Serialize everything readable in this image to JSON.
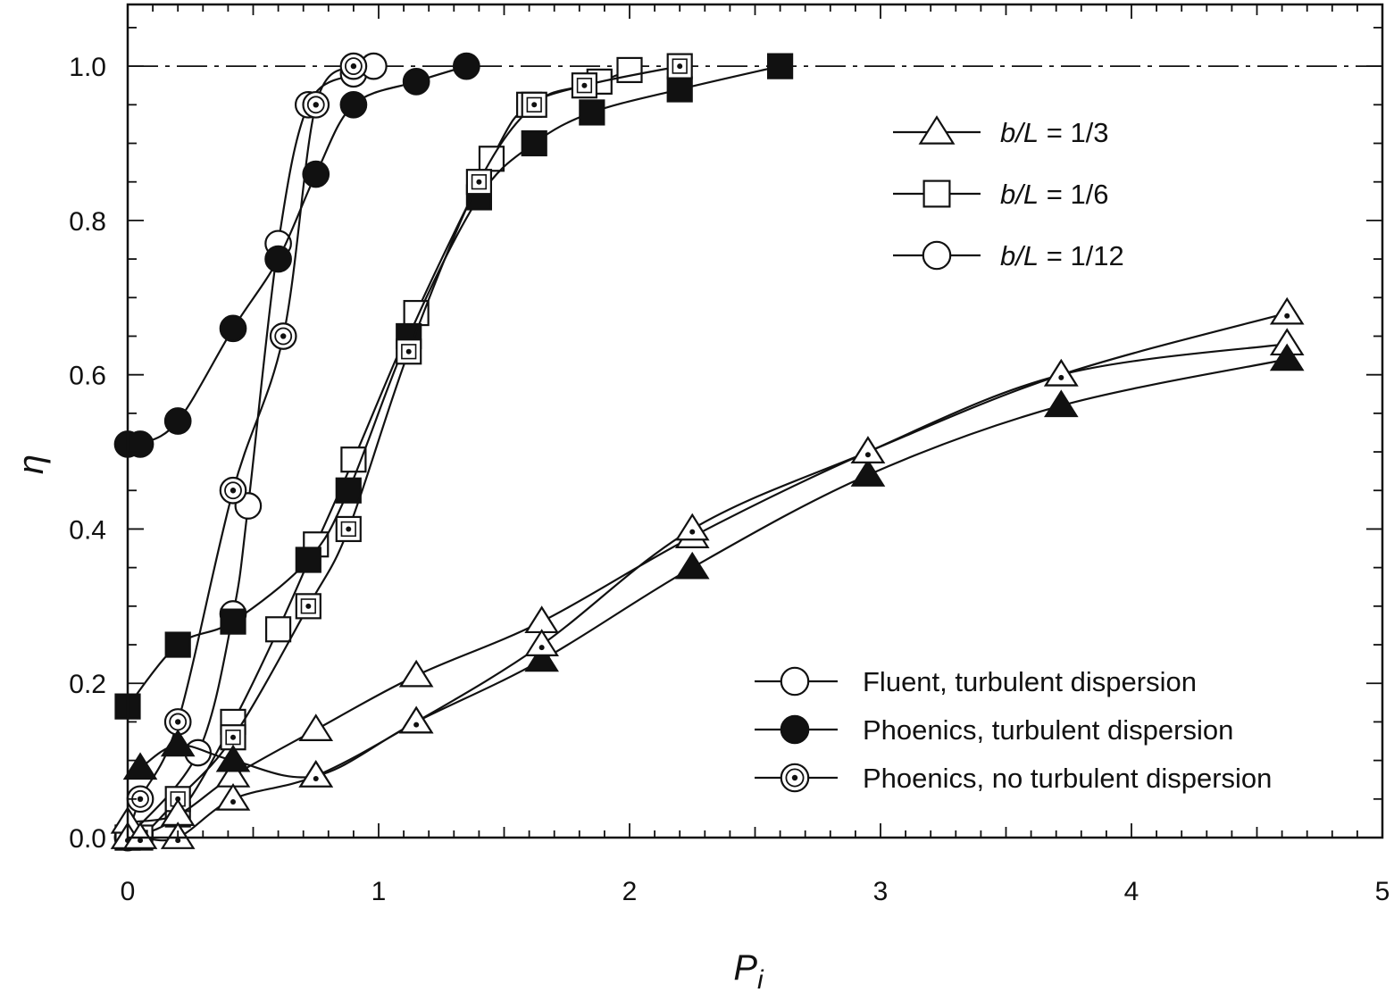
{
  "chart_data": {
    "type": "scatter",
    "xlabel": "P",
    "xlabel_sub": "i",
    "ylabel": "η",
    "xlim": [
      0,
      5
    ],
    "ylim": [
      0,
      1.08
    ],
    "x_ticks": [
      "0",
      "1",
      "2",
      "3",
      "4",
      "5"
    ],
    "y_ticks": [
      "0.0",
      "0.2",
      "0.4",
      "0.6",
      "0.8",
      "1.0"
    ],
    "reference_line": {
      "y": 1.0,
      "style": "dash-dot"
    },
    "grid": false,
    "legend_shapes": {
      "placement": "top-right",
      "entries": [
        {
          "marker": "triangle",
          "label_var": "b/L",
          "label_val": " = 1/3"
        },
        {
          "marker": "square",
          "label_var": "b/L",
          "label_val": " = 1/6"
        },
        {
          "marker": "circle",
          "label_var": "b/L",
          "label_val": " = 1/12"
        }
      ]
    },
    "legend_methods": {
      "placement": "bottom-right",
      "entries": [
        {
          "fill": "open",
          "label": "Fluent, turbulent dispersion"
        },
        {
          "fill": "filled",
          "label": "Phoenics, turbulent dispersion"
        },
        {
          "fill": "dotted",
          "label": "Phoenics, no turbulent dispersion"
        }
      ]
    },
    "series": [
      {
        "marker": "circle",
        "fill": "open",
        "x": [
          0.0,
          0.28,
          0.42,
          0.48,
          0.6,
          0.72,
          0.9,
          0.98
        ],
        "y": [
          0.0,
          0.11,
          0.29,
          0.43,
          0.77,
          0.95,
          0.99,
          1.0
        ]
      },
      {
        "marker": "circle",
        "fill": "filled",
        "x": [
          0.0,
          0.05,
          0.2,
          0.42,
          0.6,
          0.75,
          0.9,
          1.15,
          1.35
        ],
        "y": [
          0.51,
          0.51,
          0.54,
          0.66,
          0.75,
          0.86,
          0.95,
          0.98,
          1.0
        ]
      },
      {
        "marker": "circle",
        "fill": "dotted",
        "x": [
          0.0,
          0.05,
          0.2,
          0.42,
          0.62,
          0.75,
          0.9
        ],
        "y": [
          0.0,
          0.05,
          0.15,
          0.45,
          0.65,
          0.95,
          1.0
        ]
      },
      {
        "marker": "square",
        "fill": "open",
        "x": [
          0.0,
          0.2,
          0.42,
          0.6,
          0.75,
          0.9,
          1.15,
          1.45,
          1.6,
          1.88,
          2.0
        ],
        "y": [
          0.0,
          0.03,
          0.15,
          0.27,
          0.38,
          0.49,
          0.68,
          0.88,
          0.95,
          0.98,
          0.995
        ]
      },
      {
        "marker": "square",
        "fill": "filled",
        "x": [
          0.0,
          0.2,
          0.42,
          0.72,
          0.88,
          1.12,
          1.4,
          1.62,
          1.85,
          2.2,
          2.6
        ],
        "y": [
          0.17,
          0.25,
          0.28,
          0.36,
          0.45,
          0.65,
          0.83,
          0.9,
          0.94,
          0.97,
          1.0
        ]
      },
      {
        "marker": "square",
        "fill": "dotted",
        "x": [
          0.0,
          0.05,
          0.2,
          0.42,
          0.72,
          0.88,
          1.12,
          1.4,
          1.62,
          1.82,
          2.2
        ],
        "y": [
          0.0,
          0.0,
          0.05,
          0.13,
          0.3,
          0.4,
          0.63,
          0.85,
          0.95,
          0.975,
          1.0
        ]
      },
      {
        "marker": "triangle",
        "fill": "open",
        "x": [
          0.0,
          0.2,
          0.42,
          0.75,
          1.15,
          1.65,
          2.25,
          2.95,
          3.72,
          4.62
        ],
        "y": [
          0.02,
          0.03,
          0.08,
          0.14,
          0.21,
          0.28,
          0.39,
          0.5,
          0.6,
          0.64
        ]
      },
      {
        "marker": "triangle",
        "fill": "filled",
        "x": [
          0.05,
          0.2,
          0.42,
          0.75,
          1.15,
          1.65,
          2.25,
          2.95,
          3.72,
          4.62
        ],
        "y": [
          0.09,
          0.12,
          0.1,
          0.08,
          0.15,
          0.23,
          0.35,
          0.47,
          0.56,
          0.62
        ]
      },
      {
        "marker": "triangle",
        "fill": "dotted",
        "x": [
          0.0,
          0.05,
          0.2,
          0.42,
          0.75,
          1.15,
          1.65,
          2.25,
          2.95,
          3.72,
          4.62
        ],
        "y": [
          0.0,
          0.0,
          0.0,
          0.05,
          0.08,
          0.15,
          0.25,
          0.4,
          0.5,
          0.6,
          0.68
        ]
      }
    ]
  }
}
